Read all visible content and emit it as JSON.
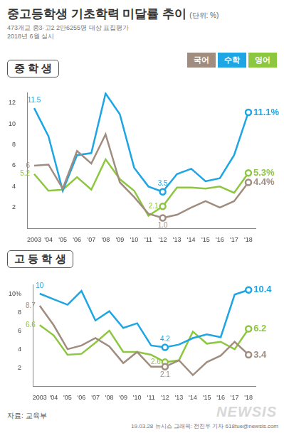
{
  "title": "중고등학생 기초학력 미달률 추이",
  "unit": "(단위: %)",
  "subtitle": [
    "473개교 중3·고2 2만6255명 대상 표집평가",
    "2018년 6월 실시"
  ],
  "source": "자료: 교육부",
  "credit": "19.03.28 뉴시스 그래픽: 전진우 기자 618tue@newsis.com",
  "logo": "NEWSIS",
  "chart_data": [
    {
      "type": "line",
      "title": "중 학 생",
      "categories": [
        "2003",
        "'04",
        "'05",
        "'06",
        "'07",
        "'08",
        "'09",
        "'10",
        "'11",
        "'12",
        "'13",
        "'14",
        "'15",
        "'16",
        "'17",
        "'18"
      ],
      "series": [
        {
          "name": "국어",
          "color": "#a08d80",
          "values": [
            6.0,
            6.1,
            3.8,
            7.4,
            6.2,
            9.0,
            4.4,
            3.0,
            1.4,
            1.0,
            1.3,
            2.0,
            2.6,
            2.0,
            2.6,
            4.4
          ],
          "value_labels": [
            "6",
            null,
            null,
            null,
            null,
            null,
            null,
            null,
            null,
            "1.0",
            null,
            null,
            null,
            null,
            null,
            "4.4%"
          ]
        },
        {
          "name": "수학",
          "color": "#1ea5e3",
          "values": [
            11.5,
            8.8,
            3.6,
            7.0,
            7.2,
            12.9,
            10.9,
            5.8,
            4.0,
            3.5,
            5.2,
            5.7,
            4.5,
            4.8,
            7.0,
            11.1
          ],
          "value_labels": [
            "11.5",
            null,
            null,
            null,
            null,
            null,
            null,
            null,
            null,
            "3.5",
            null,
            null,
            null,
            null,
            null,
            "11.1%"
          ]
        },
        {
          "name": "영어",
          "color": "#8dc63f",
          "values": [
            5.2,
            3.6,
            3.7,
            4.9,
            3.7,
            6.6,
            4.7,
            3.6,
            1.2,
            2.1,
            3.9,
            3.9,
            3.8,
            4.0,
            3.4,
            5.3
          ],
          "value_labels": [
            "5.2",
            null,
            null,
            null,
            null,
            null,
            null,
            null,
            null,
            "2.1",
            null,
            null,
            null,
            null,
            null,
            "5.3%"
          ]
        }
      ],
      "ylim": [
        0,
        13
      ],
      "yticks": [
        2,
        4,
        6,
        8,
        10,
        12
      ],
      "grid": false,
      "legend": "top-right",
      "data_labels": true,
      "marker": "circle"
    },
    {
      "type": "line",
      "title": "고 등 학 생",
      "categories": [
        "2003",
        "'04",
        "'05",
        "'06",
        "'07",
        "'08",
        "'09",
        "'10",
        "'11",
        "'12",
        "'13",
        "'14",
        "'15",
        "'16",
        "'17",
        "'18"
      ],
      "series": [
        {
          "name": "국어",
          "color": "#a08d80",
          "values": [
            8.7,
            6.6,
            4.0,
            4.4,
            5.2,
            4.3,
            2.5,
            3.7,
            2.1,
            2.1,
            2.8,
            1.2,
            2.6,
            3.3,
            4.8,
            3.4
          ],
          "value_labels": [
            "8.7",
            null,
            null,
            null,
            null,
            null,
            null,
            null,
            null,
            "2.1",
            null,
            null,
            null,
            null,
            null,
            "3.4"
          ]
        },
        {
          "name": "수학",
          "color": "#1ea5e3",
          "values": [
            10.0,
            9.4,
            8.8,
            10.3,
            7.1,
            8.1,
            6.3,
            6.8,
            4.4,
            4.2,
            4.5,
            5.2,
            5.6,
            5.3,
            9.9,
            10.4
          ],
          "value_labels": [
            "10",
            null,
            null,
            null,
            null,
            null,
            null,
            null,
            null,
            "4.2",
            null,
            null,
            null,
            null,
            null,
            "10.4"
          ]
        },
        {
          "name": "영어",
          "color": "#8dc63f",
          "values": [
            6.6,
            5.5,
            3.4,
            3.5,
            4.7,
            6.0,
            3.7,
            3.7,
            3.4,
            2.6,
            2.8,
            5.9,
            4.6,
            4.8,
            4.0,
            6.2
          ],
          "value_labels": [
            "6.6",
            null,
            null,
            null,
            null,
            null,
            null,
            null,
            null,
            "2.6",
            null,
            null,
            null,
            null,
            null,
            "6.2"
          ]
        }
      ],
      "ylim": [
        0,
        11
      ],
      "yticks": [
        2,
        4,
        6,
        8,
        {
          "value": 10,
          "label": "10%"
        }
      ],
      "grid": false,
      "data_labels": true,
      "marker": "circle"
    }
  ]
}
